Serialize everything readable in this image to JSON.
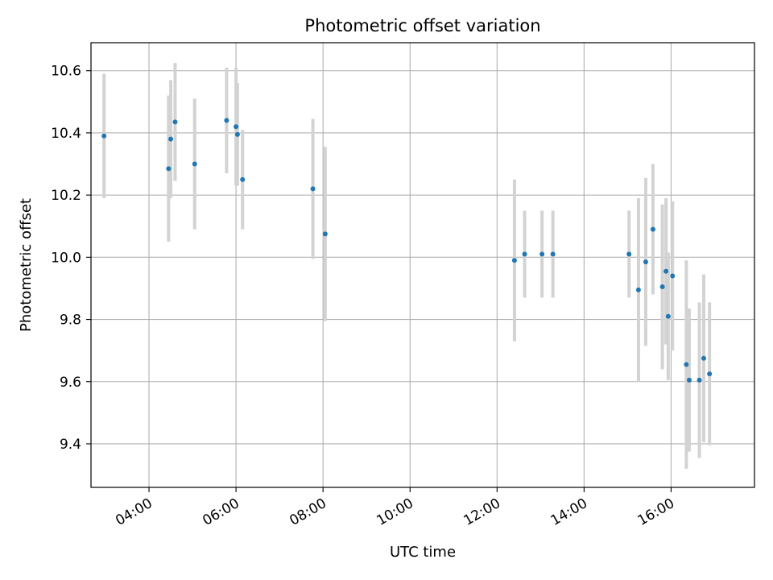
{
  "chart_data": {
    "type": "scatter",
    "title": "Photometric offset variation",
    "xlabel": "UTC time",
    "ylabel": "Photometric offset",
    "x_unit": "time-of-day",
    "xlim": [
      "02:40",
      "17:55"
    ],
    "ylim": [
      9.26,
      10.69
    ],
    "xticks": [
      "04:00",
      "06:00",
      "08:00",
      "10:00",
      "12:00",
      "14:00",
      "16:00"
    ],
    "yticks": [
      "9.4",
      "9.6",
      "9.8",
      "10.0",
      "10.2",
      "10.4",
      "10.6"
    ],
    "grid": true,
    "legend": "none",
    "colors": {
      "point": "#1f77b4",
      "errorbar": "#d3d3d3",
      "grid": "#b0b0b0"
    },
    "points": [
      {
        "x": "02:58",
        "y": 10.39,
        "yerr": 0.2
      },
      {
        "x": "04:27",
        "y": 10.285,
        "yerr": 0.235
      },
      {
        "x": "04:30",
        "y": 10.38,
        "yerr": 0.19
      },
      {
        "x": "04:36",
        "y": 10.435,
        "yerr": 0.19
      },
      {
        "x": "05:03",
        "y": 10.3,
        "yerr": 0.21
      },
      {
        "x": "05:47",
        "y": 10.44,
        "yerr": 0.17
      },
      {
        "x": "06:00",
        "y": 10.42,
        "yerr": 0.19
      },
      {
        "x": "06:02",
        "y": 10.395,
        "yerr": 0.165
      },
      {
        "x": "06:09",
        "y": 10.25,
        "yerr": 0.16
      },
      {
        "x": "07:46",
        "y": 10.22,
        "yerr": 0.225
      },
      {
        "x": "08:03",
        "y": 10.075,
        "yerr": 0.28
      },
      {
        "x": "12:24",
        "y": 9.99,
        "yerr": 0.26
      },
      {
        "x": "12:38",
        "y": 10.01,
        "yerr": 0.14
      },
      {
        "x": "13:02",
        "y": 10.01,
        "yerr": 0.14
      },
      {
        "x": "13:17",
        "y": 10.01,
        "yerr": 0.14
      },
      {
        "x": "15:02",
        "y": 10.01,
        "yerr": 0.14
      },
      {
        "x": "15:15",
        "y": 9.895,
        "yerr": 0.295
      },
      {
        "x": "15:25",
        "y": 9.985,
        "yerr": 0.27
      },
      {
        "x": "15:35",
        "y": 10.09,
        "yerr": 0.21
      },
      {
        "x": "15:48",
        "y": 9.905,
        "yerr": 0.265
      },
      {
        "x": "15:53",
        "y": 9.955,
        "yerr": 0.235
      },
      {
        "x": "15:56",
        "y": 9.81,
        "yerr": 0.205
      },
      {
        "x": "16:02",
        "y": 9.94,
        "yerr": 0.24
      },
      {
        "x": "16:21",
        "y": 9.655,
        "yerr": 0.335
      },
      {
        "x": "16:25",
        "y": 9.605,
        "yerr": 0.23
      },
      {
        "x": "16:39",
        "y": 9.605,
        "yerr": 0.25
      },
      {
        "x": "16:45",
        "y": 9.675,
        "yerr": 0.27
      },
      {
        "x": "16:53",
        "y": 9.625,
        "yerr": 0.23
      }
    ]
  }
}
